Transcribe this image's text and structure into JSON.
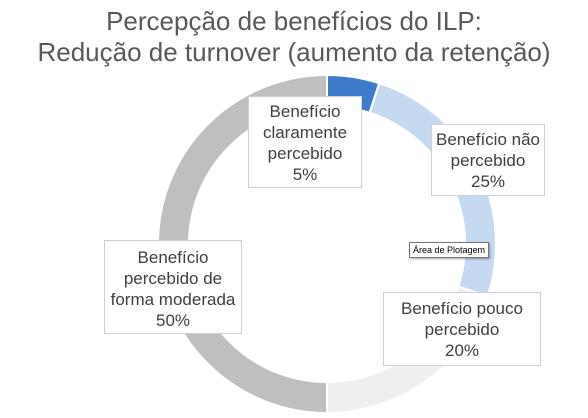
{
  "chart_data": {
    "type": "pie",
    "subtype": "donut",
    "title_lines": [
      "Percepção de benefícios do ILP:",
      "Redução de turnover (aumento da retenção)"
    ],
    "slices": [
      {
        "label_lines": [
          "Benefício",
          "claramente",
          "percebido"
        ],
        "value": 5,
        "value_label": "5%",
        "color": "#3E7CCB"
      },
      {
        "label_lines": [
          "Benefício não",
          "percebido"
        ],
        "value": 25,
        "value_label": "25%",
        "color": "#C5D9F1"
      },
      {
        "label_lines": [
          "Benefício pouco",
          "percebido"
        ],
        "value": 20,
        "value_label": "20%",
        "color": "#EFEFEF"
      },
      {
        "label_lines": [
          "Benefício",
          "percebido de",
          "forma moderada"
        ],
        "value": 50,
        "value_label": "50%",
        "color": "#BFBFBF"
      }
    ],
    "legend": "none"
  },
  "tooltip": {
    "text": "Área de Plotagem"
  }
}
